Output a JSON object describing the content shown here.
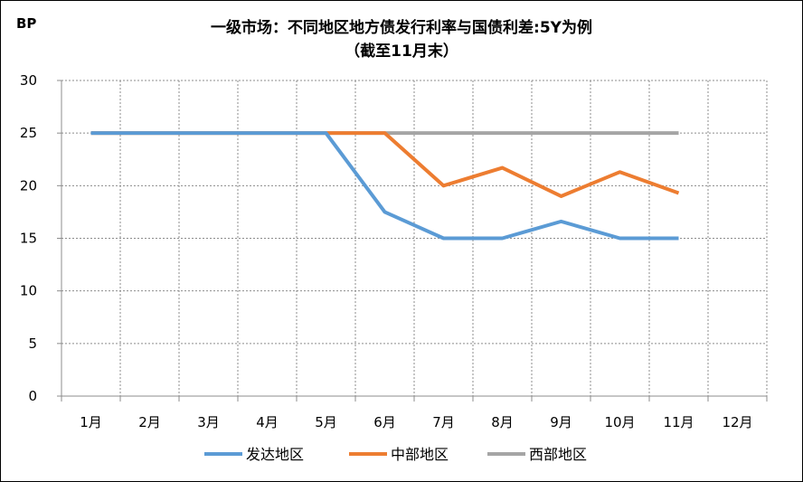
{
  "chart_data": {
    "type": "line",
    "title": "一级市场：不同地区地方债发行利率与国债利差:5Y为例",
    "subtitle": "（截至11月末）",
    "ylabel": "BP",
    "categories": [
      "1月",
      "2月",
      "3月",
      "4月",
      "5月",
      "6月",
      "7月",
      "8月",
      "9月",
      "10月",
      "11月",
      "12月"
    ],
    "ylim": [
      0,
      30
    ],
    "yticks": [
      0,
      5,
      10,
      15,
      20,
      25,
      30
    ],
    "grid": true,
    "legend_position": "bottom",
    "series": [
      {
        "name": "发达地区",
        "color": "#5B9BD5",
        "values": [
          25,
          25,
          25,
          25,
          25,
          17.5,
          15,
          15,
          16.6,
          15,
          15,
          null
        ]
      },
      {
        "name": "中部地区",
        "color": "#ED7D31",
        "values": [
          25,
          25,
          25,
          25,
          25,
          25,
          20,
          21.7,
          19,
          21.3,
          19.3,
          null
        ]
      },
      {
        "name": "西部地区",
        "color": "#A5A5A5",
        "values": [
          25,
          25,
          25,
          25,
          25,
          25,
          25,
          25,
          25,
          25,
          25,
          null
        ]
      }
    ]
  }
}
